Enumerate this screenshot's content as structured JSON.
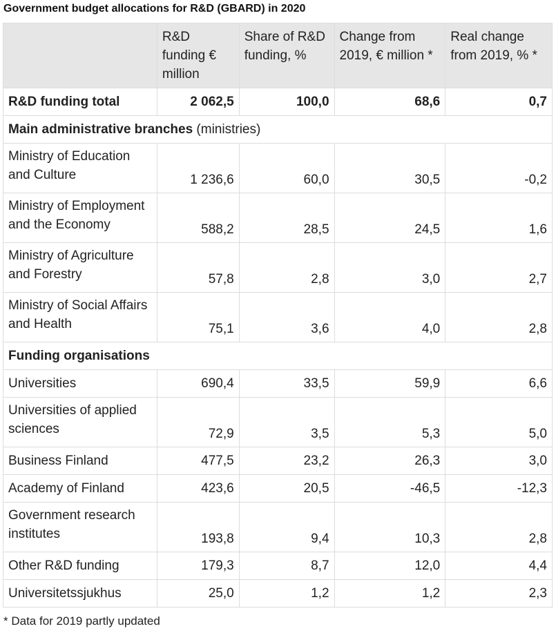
{
  "title": "Government budget allocations for R&D (GBARD) in 2020",
  "columns": [
    "",
    "R&D funding € million",
    "Share of R&D funding, %",
    "Change from 2019, € million *",
    "Real change from 2019, % *"
  ],
  "rows": [
    {
      "type": "total",
      "label": "R&D funding total",
      "values": [
        "2 062,5",
        "100,0",
        "68,6",
        "0,7"
      ]
    },
    {
      "type": "section",
      "label": "Main administrative branches",
      "suffix": " (ministries)"
    },
    {
      "type": "row",
      "lines": 2,
      "label": "Ministry of Education and Culture",
      "values": [
        "1 236,6",
        "60,0",
        "30,5",
        "-0,2"
      ]
    },
    {
      "type": "row",
      "lines": 2,
      "label": "Ministry of Employment and the Economy",
      "values": [
        "588,2",
        "28,5",
        "24,5",
        "1,6"
      ]
    },
    {
      "type": "row",
      "lines": 2,
      "label": "Ministry of Agriculture and Forestry",
      "values": [
        "57,8",
        "2,8",
        "3,0",
        "2,7"
      ]
    },
    {
      "type": "row",
      "lines": 2,
      "label": "Ministry of Social Affairs and Health",
      "values": [
        "75,1",
        "3,6",
        "4,0",
        "2,8"
      ]
    },
    {
      "type": "section",
      "label": "Funding organisations",
      "suffix": ""
    },
    {
      "type": "row",
      "lines": 1,
      "label": "Universities",
      "values": [
        "690,4",
        "33,5",
        "59,9",
        "6,6"
      ]
    },
    {
      "type": "row",
      "lines": 2,
      "label": "Universities of applied sciences",
      "values": [
        "72,9",
        "3,5",
        "5,3",
        "5,0"
      ]
    },
    {
      "type": "row",
      "lines": 1,
      "label": "Business Finland",
      "values": [
        "477,5",
        "23,2",
        "26,3",
        "3,0"
      ]
    },
    {
      "type": "row",
      "lines": 1,
      "label": "Academy of Finland",
      "values": [
        "423,6",
        "20,5",
        "-46,5",
        "-12,3"
      ]
    },
    {
      "type": "row",
      "lines": 2,
      "label": "Government research institutes",
      "values": [
        "193,8",
        "9,4",
        "10,3",
        "2,8"
      ]
    },
    {
      "type": "row",
      "lines": 1,
      "label": "Other R&D funding",
      "values": [
        "179,3",
        "8,7",
        "12,0",
        "4,4"
      ]
    },
    {
      "type": "row",
      "lines": 1,
      "label": "Universitetssjukhus",
      "values": [
        "25,0",
        "1,2",
        "1,2",
        "2,3"
      ]
    }
  ],
  "footnote": "* Data for 2019 partly updated",
  "colors": {
    "header_bg": "#e6e6e6",
    "border": "#dcdcdc",
    "text": "#222222"
  }
}
